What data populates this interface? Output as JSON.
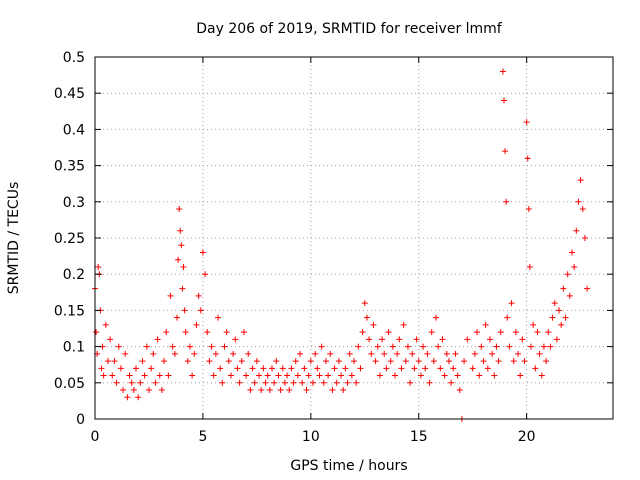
{
  "chart_data": {
    "type": "scatter",
    "title": "Day 206 of 2019, SRMTID for receiver lmmf",
    "xlabel": "GPS time / hours",
    "ylabel": "SRMTID / TECUs",
    "xlim": [
      0,
      24
    ],
    "ylim": [
      0,
      0.5
    ],
    "x_ticks": [
      0,
      5,
      10,
      15,
      20
    ],
    "x_tick_labels": [
      "0",
      "5",
      "10",
      "15",
      "20"
    ],
    "y_ticks": [
      0,
      0.05,
      0.1,
      0.15,
      0.2,
      0.25,
      0.3,
      0.35,
      0.4,
      0.45,
      0.5
    ],
    "y_tick_labels": [
      "0",
      "0.05",
      "0.1",
      "0.15",
      "0.2",
      "0.25",
      "0.3",
      "0.35",
      "0.4",
      "0.45",
      "0.5"
    ],
    "grid": true,
    "marker": "plus",
    "series": [
      {
        "name": "SRMTID",
        "color": "#ff0000",
        "x": [
          0.0,
          0.05,
          0.1,
          0.15,
          0.2,
          0.25,
          0.3,
          0.35,
          0.4,
          0.5,
          0.6,
          0.7,
          0.8,
          0.9,
          1.0,
          1.1,
          1.2,
          1.3,
          1.4,
          1.5,
          1.6,
          1.7,
          1.8,
          1.9,
          2.0,
          2.1,
          2.2,
          2.3,
          2.4,
          2.5,
          2.6,
          2.7,
          2.8,
          2.9,
          3.0,
          3.1,
          3.2,
          3.3,
          3.4,
          3.5,
          3.6,
          3.7,
          3.8,
          3.85,
          3.9,
          3.95,
          4.0,
          4.05,
          4.1,
          4.15,
          4.2,
          4.3,
          4.4,
          4.5,
          4.6,
          4.7,
          4.8,
          4.9,
          5.0,
          5.1,
          5.2,
          5.3,
          5.4,
          5.5,
          5.6,
          5.7,
          5.8,
          5.9,
          6.0,
          6.1,
          6.2,
          6.3,
          6.4,
          6.5,
          6.6,
          6.7,
          6.8,
          6.9,
          7.0,
          7.1,
          7.2,
          7.3,
          7.4,
          7.5,
          7.6,
          7.7,
          7.8,
          7.9,
          8.0,
          8.1,
          8.2,
          8.3,
          8.4,
          8.5,
          8.6,
          8.7,
          8.8,
          8.9,
          9.0,
          9.1,
          9.2,
          9.3,
          9.4,
          9.5,
          9.6,
          9.7,
          9.8,
          9.9,
          10.0,
          10.1,
          10.2,
          10.3,
          10.4,
          10.5,
          10.6,
          10.7,
          10.8,
          10.9,
          11.0,
          11.1,
          11.2,
          11.3,
          11.4,
          11.5,
          11.6,
          11.7,
          11.8,
          11.9,
          12.0,
          12.1,
          12.2,
          12.3,
          12.4,
          12.5,
          12.6,
          12.7,
          12.8,
          12.9,
          13.0,
          13.1,
          13.2,
          13.3,
          13.4,
          13.5,
          13.6,
          13.7,
          13.8,
          13.9,
          14.0,
          14.1,
          14.2,
          14.3,
          14.4,
          14.5,
          14.6,
          14.7,
          14.8,
          14.9,
          15.0,
          15.1,
          15.2,
          15.3,
          15.4,
          15.5,
          15.6,
          15.7,
          15.8,
          15.9,
          16.0,
          16.1,
          16.2,
          16.3,
          16.4,
          16.5,
          16.6,
          16.7,
          16.8,
          16.9,
          17.0,
          17.1,
          17.25,
          17.5,
          17.6,
          17.7,
          17.8,
          17.9,
          18.0,
          18.1,
          18.2,
          18.3,
          18.4,
          18.5,
          18.6,
          18.7,
          18.8,
          18.9,
          18.95,
          19.0,
          19.05,
          19.1,
          19.2,
          19.3,
          19.4,
          19.5,
          19.6,
          19.7,
          19.8,
          19.9,
          20.0,
          20.05,
          20.1,
          20.15,
          20.2,
          20.3,
          20.4,
          20.5,
          20.6,
          20.7,
          20.8,
          20.9,
          21.0,
          21.1,
          21.2,
          21.3,
          21.4,
          21.5,
          21.6,
          21.7,
          21.8,
          21.9,
          22.0,
          22.1,
          22.2,
          22.3,
          22.4,
          22.5,
          22.6,
          22.7,
          22.8
        ],
        "y": [
          0.18,
          0.12,
          0.09,
          0.21,
          0.2,
          0.15,
          0.07,
          0.1,
          0.06,
          0.13,
          0.08,
          0.11,
          0.06,
          0.08,
          0.05,
          0.1,
          0.07,
          0.04,
          0.09,
          0.03,
          0.06,
          0.05,
          0.04,
          0.07,
          0.03,
          0.05,
          0.08,
          0.06,
          0.1,
          0.04,
          0.07,
          0.09,
          0.05,
          0.11,
          0.06,
          0.04,
          0.08,
          0.12,
          0.06,
          0.17,
          0.1,
          0.09,
          0.14,
          0.22,
          0.29,
          0.26,
          0.24,
          0.18,
          0.21,
          0.15,
          0.12,
          0.08,
          0.1,
          0.06,
          0.09,
          0.13,
          0.17,
          0.15,
          0.23,
          0.2,
          0.12,
          0.08,
          0.1,
          0.06,
          0.09,
          0.14,
          0.07,
          0.05,
          0.1,
          0.12,
          0.08,
          0.06,
          0.09,
          0.11,
          0.07,
          0.05,
          0.08,
          0.12,
          0.06,
          0.09,
          0.04,
          0.07,
          0.05,
          0.08,
          0.06,
          0.04,
          0.07,
          0.05,
          0.06,
          0.04,
          0.07,
          0.05,
          0.08,
          0.06,
          0.04,
          0.07,
          0.05,
          0.06,
          0.04,
          0.07,
          0.05,
          0.08,
          0.06,
          0.09,
          0.05,
          0.07,
          0.04,
          0.06,
          0.08,
          0.05,
          0.09,
          0.07,
          0.06,
          0.1,
          0.05,
          0.08,
          0.06,
          0.09,
          0.04,
          0.07,
          0.05,
          0.08,
          0.06,
          0.04,
          0.07,
          0.05,
          0.09,
          0.06,
          0.08,
          0.05,
          0.1,
          0.07,
          0.12,
          0.16,
          0.14,
          0.11,
          0.09,
          0.13,
          0.08,
          0.1,
          0.06,
          0.11,
          0.09,
          0.07,
          0.12,
          0.08,
          0.1,
          0.06,
          0.09,
          0.11,
          0.07,
          0.13,
          0.08,
          0.1,
          0.05,
          0.09,
          0.07,
          0.11,
          0.08,
          0.06,
          0.1,
          0.07,
          0.09,
          0.05,
          0.12,
          0.08,
          0.14,
          0.1,
          0.07,
          0.11,
          0.06,
          0.09,
          0.08,
          0.05,
          0.07,
          0.09,
          0.06,
          0.04,
          0.0,
          0.08,
          0.11,
          0.07,
          0.09,
          0.12,
          0.06,
          0.1,
          0.08,
          0.13,
          0.07,
          0.11,
          0.09,
          0.06,
          0.1,
          0.08,
          0.12,
          0.48,
          0.44,
          0.37,
          0.3,
          0.14,
          0.1,
          0.16,
          0.08,
          0.12,
          0.09,
          0.06,
          0.11,
          0.08,
          0.41,
          0.36,
          0.29,
          0.21,
          0.1,
          0.13,
          0.07,
          0.12,
          0.09,
          0.06,
          0.1,
          0.08,
          0.12,
          0.1,
          0.14,
          0.16,
          0.11,
          0.15,
          0.13,
          0.18,
          0.14,
          0.2,
          0.17,
          0.23,
          0.21,
          0.26,
          0.3,
          0.33,
          0.29,
          0.25,
          0.18
        ]
      }
    ]
  }
}
